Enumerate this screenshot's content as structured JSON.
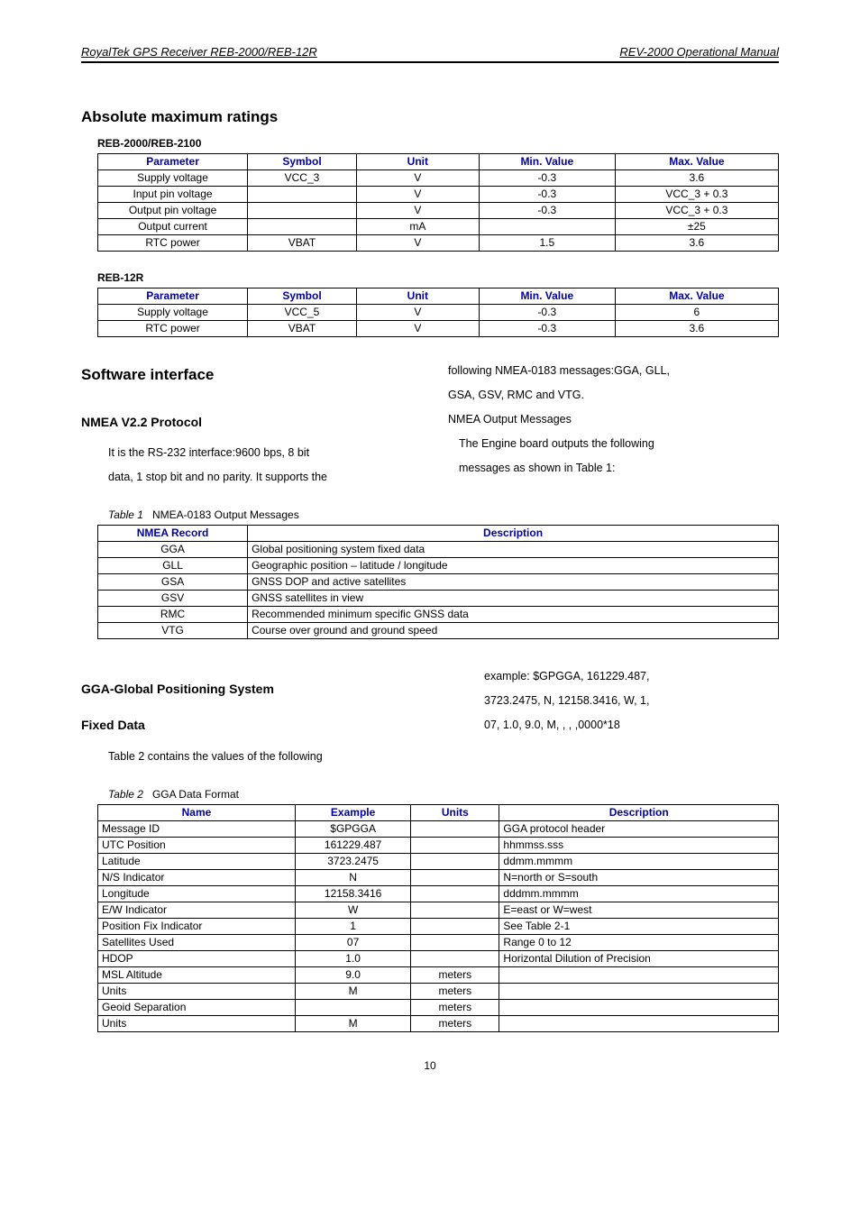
{
  "header": {
    "left": "RoyalTek GPS Receiver REB-2000/REB-12R",
    "right": "REV-2000 Operational Manual"
  },
  "abs_heading": "Absolute maximum ratings",
  "table1_label": "REB-2000/REB-2100",
  "table1": {
    "headers": [
      "Parameter",
      "Symbol",
      "Unit",
      "Min. Value",
      "Max. Value"
    ],
    "col_widths": [
      "22%",
      "16%",
      "18%",
      "20%",
      "24%"
    ],
    "rows": [
      [
        "Supply voltage",
        "VCC_3",
        "V",
        "-0.3",
        "3.6"
      ],
      [
        "Input pin voltage",
        "",
        "V",
        "-0.3",
        "VCC_3 + 0.3"
      ],
      [
        "Output pin voltage",
        "",
        "V",
        "-0.3",
        "VCC_3 + 0.3"
      ],
      [
        "Output current",
        "",
        "mA",
        "",
        "±25"
      ],
      [
        "RTC power",
        "VBAT",
        "V",
        "1.5",
        "3.6"
      ]
    ]
  },
  "table2_label": "REB-12R",
  "table2": {
    "headers": [
      "Parameter",
      "Symbol",
      "Unit",
      "Min. Value",
      "Max. Value"
    ],
    "col_widths": [
      "22%",
      "16%",
      "18%",
      "20%",
      "24%"
    ],
    "rows": [
      [
        "Supply voltage",
        "VCC_5",
        "V",
        "-0.3",
        "6"
      ],
      [
        "RTC power",
        "VBAT",
        "V",
        "-0.3",
        "3.6"
      ]
    ]
  },
  "sw_heading": "Software interface",
  "nmea_heading": "NMEA V2.2 Protocol",
  "para_left_1": "It is the RS-232 interface:9600 bps, 8 bit",
  "para_left_2": "data, 1 stop bit and no parity. It supports the",
  "para_right_1": "following NMEA-0183 messages:GGA, GLL,",
  "para_right_2": "GSA, GSV, RMC and VTG.",
  "para_right_3": "NMEA Output Messages",
  "para_right_4": "The Engine board outputs the following",
  "para_right_5": "messages as shown in Table 1:",
  "caption1_prefix": "Table 1",
  "caption1_text": "NMEA-0183 Output Messages",
  "table3": {
    "headers": [
      "NMEA Record",
      "Description"
    ],
    "col_widths": [
      "22%",
      "78%"
    ],
    "rows": [
      [
        "GGA",
        "Global positioning system fixed data"
      ],
      [
        "GLL",
        "Geographic position – latitude / longitude"
      ],
      [
        "GSA",
        "GNSS DOP and active satellites"
      ],
      [
        "GSV",
        "GNSS satellites in view"
      ],
      [
        "RMC",
        "Recommended minimum specific GNSS data"
      ],
      [
        "VTG",
        "Course over ground and ground speed"
      ]
    ]
  },
  "gga_heading_1": "GGA-Global Positioning System",
  "gga_heading_2": "Fixed Data",
  "gga_left_1": "Table 2 contains the values of the following",
  "gga_right_1": "example: $GPGGA, 161229.487,",
  "gga_right_2": "3723.2475, N, 12158.3416, W, 1,",
  "gga_right_3": "07, 1.0, 9.0, M, , , ,0000*18",
  "caption2_prefix": "Table 2",
  "caption2_text": "GGA Data Format",
  "table4": {
    "headers": [
      "Name",
      "Example",
      "Units",
      "Description"
    ],
    "col_widths": [
      "29%",
      "17%",
      "13%",
      "41%"
    ],
    "rows": [
      [
        "Message ID",
        "$GPGGA",
        "",
        "GGA protocol header"
      ],
      [
        "UTC Position",
        "161229.487",
        "",
        "hhmmss.sss"
      ],
      [
        "Latitude",
        "3723.2475",
        "",
        "ddmm.mmmm"
      ],
      [
        "N/S Indicator",
        "N",
        "",
        "N=north or S=south"
      ],
      [
        "Longitude",
        "12158.3416",
        "",
        "dddmm.mmmm"
      ],
      [
        "E/W Indicator",
        "W",
        "",
        "E=east or W=west"
      ],
      [
        "Position Fix Indicator",
        "1",
        "",
        "See Table 2-1"
      ],
      [
        "Satellites Used",
        "07",
        "",
        "Range 0 to 12"
      ],
      [
        "HDOP",
        "1.0",
        "",
        "Horizontal Dilution of Precision"
      ],
      [
        "MSL Altitude",
        "9.0",
        "meters",
        ""
      ],
      [
        "Units",
        "M",
        "meters",
        ""
      ],
      [
        "Geoid Separation",
        "",
        "meters",
        ""
      ],
      [
        "Units",
        "M",
        "meters",
        ""
      ]
    ]
  },
  "page_number": "10"
}
